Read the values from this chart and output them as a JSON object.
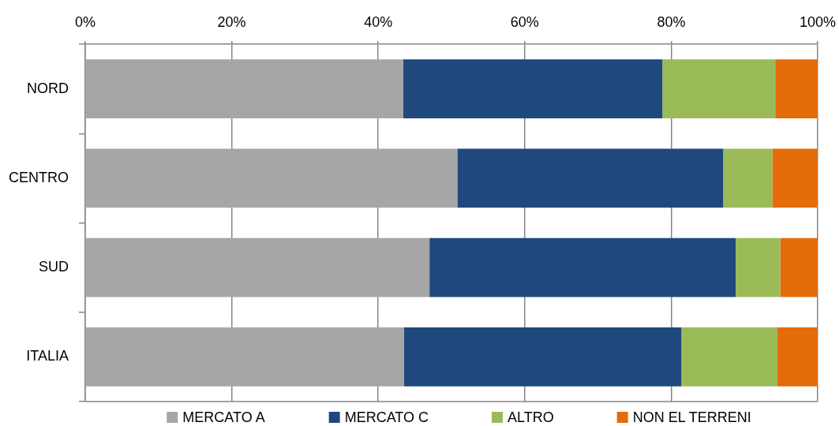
{
  "chart_data": {
    "type": "bar",
    "orientation": "horizontal",
    "stacked": true,
    "categories": [
      "NORD",
      "CENTRO",
      "SUD",
      "ITALIA"
    ],
    "series": [
      {
        "name": "MERCATO A",
        "color": "#a6a6a6",
        "values": [
          43.4,
          50.8,
          47.0,
          43.5
        ]
      },
      {
        "name": "MERCATO C",
        "color": "#1f497d",
        "values": [
          35.4,
          36.3,
          41.8,
          37.9
        ]
      },
      {
        "name": "ALTRO",
        "color": "#9bbb59",
        "values": [
          15.4,
          6.7,
          6.1,
          13.1
        ]
      },
      {
        "name": "NON EL TERRENI",
        "color": "#e46c0a",
        "values": [
          5.8,
          6.2,
          5.1,
          5.5
        ]
      }
    ],
    "xlim": [
      0,
      100
    ],
    "xticks": [
      {
        "value": 0,
        "label": "0%"
      },
      {
        "value": 20,
        "label": "20%"
      },
      {
        "value": 40,
        "label": "40%"
      },
      {
        "value": 60,
        "label": "60%"
      },
      {
        "value": 80,
        "label": "80%"
      },
      {
        "value": 100,
        "label": "100%"
      }
    ],
    "grid": "x",
    "legend": "bottom"
  }
}
